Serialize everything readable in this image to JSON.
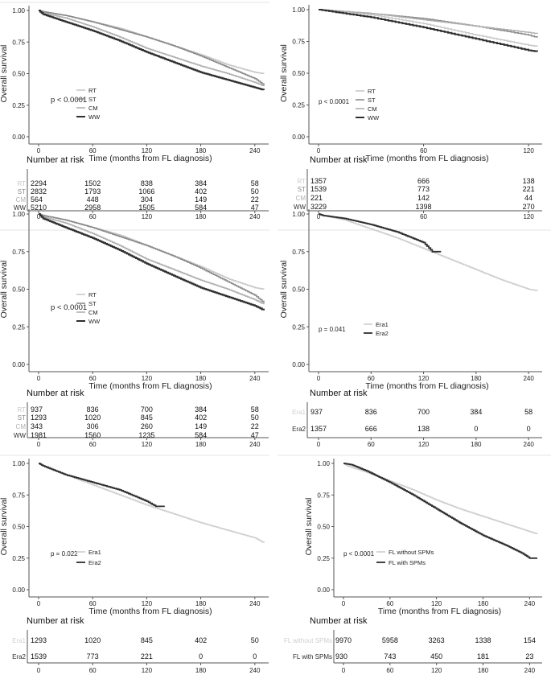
{
  "colors": {
    "RT": "#c8c8c8",
    "ST": "#8a8a8a",
    "CM": "#b0b0b0",
    "WW": "#2e2e2e",
    "Era1": "#cfcfcf",
    "Era2": "#2e2e2e",
    "FL without SPMs": "#cfcfcf",
    "FL with SPMs": "#2e2e2e",
    "axis": "#555555",
    "text": "#222222"
  },
  "chart_data": [
    {
      "id": "panel-1",
      "type": "line",
      "ylabel": "Overall survival",
      "xlabel": "Time (months from FL diagnosis)",
      "xlim": [
        0,
        250
      ],
      "ylim": [
        0,
        1
      ],
      "xticks": [
        0,
        60,
        120,
        180,
        240
      ],
      "yticks": [
        0.0,
        0.25,
        0.5,
        0.75,
        1.0
      ],
      "ytick_labels": [
        "0.00",
        "0.25",
        "0.50",
        "0.75",
        "1.00"
      ],
      "pvalue": "p < 0.0001",
      "legend": [
        "RT",
        "ST",
        "CM",
        "WW"
      ],
      "series": [
        {
          "name": "RT",
          "x": [
            0,
            5,
            30,
            60,
            90,
            120,
            150,
            180,
            210,
            240,
            250
          ],
          "y": [
            1.0,
            0.99,
            0.96,
            0.91,
            0.86,
            0.79,
            0.72,
            0.65,
            0.57,
            0.51,
            0.5
          ]
        },
        {
          "name": "ST",
          "x": [
            0,
            5,
            30,
            60,
            90,
            120,
            150,
            180,
            210,
            240,
            250
          ],
          "y": [
            1.0,
            0.99,
            0.96,
            0.91,
            0.85,
            0.79,
            0.72,
            0.64,
            0.55,
            0.46,
            0.41
          ]
        },
        {
          "name": "CM",
          "x": [
            0,
            5,
            30,
            60,
            90,
            120,
            150,
            180,
            210,
            240,
            250
          ],
          "y": [
            1.0,
            0.98,
            0.94,
            0.87,
            0.79,
            0.7,
            0.63,
            0.56,
            0.5,
            0.43,
            0.4
          ]
        },
        {
          "name": "WW",
          "x": [
            0,
            5,
            30,
            60,
            90,
            120,
            150,
            180,
            210,
            240,
            250
          ],
          "y": [
            1.0,
            0.97,
            0.91,
            0.84,
            0.76,
            0.67,
            0.59,
            0.51,
            0.45,
            0.39,
            0.37
          ]
        }
      ],
      "risk_title": "Number at risk",
      "risk_table": {
        "rows": [
          "RT",
          "ST",
          "CM",
          "WW"
        ],
        "values": [
          [
            2294,
            1502,
            838,
            384,
            58
          ],
          [
            2832,
            1793,
            1066,
            402,
            50
          ],
          [
            564,
            448,
            304,
            149,
            22
          ],
          [
            5210,
            2958,
            1505,
            584,
            47
          ]
        ]
      }
    },
    {
      "id": "panel-2",
      "type": "line",
      "ylabel": "Overall survival",
      "xlabel": "Time (months from FL diagnosis)",
      "xlim": [
        0,
        125
      ],
      "ylim": [
        0,
        1
      ],
      "xticks": [
        0,
        60,
        120
      ],
      "yticks": [
        0.0,
        0.25,
        0.5,
        0.75,
        1.0
      ],
      "ytick_labels": [
        "0.00",
        "0.25",
        "0.50",
        "0.75",
        "1.00"
      ],
      "pvalue": "p < 0.0001",
      "legend": [
        "RT",
        "ST",
        "CM",
        "WW"
      ],
      "series": [
        {
          "name": "RT",
          "x": [
            0,
            10,
            30,
            60,
            90,
            120,
            125
          ],
          "y": [
            1.0,
            0.99,
            0.96,
            0.89,
            0.8,
            0.72,
            0.71
          ]
        },
        {
          "name": "ST",
          "x": [
            0,
            10,
            30,
            60,
            90,
            120,
            125
          ],
          "y": [
            1.0,
            0.99,
            0.97,
            0.93,
            0.87,
            0.8,
            0.78
          ]
        },
        {
          "name": "CM",
          "x": [
            0,
            10,
            30,
            60,
            90,
            120,
            125
          ],
          "y": [
            1.0,
            0.99,
            0.97,
            0.92,
            0.87,
            0.82,
            0.81
          ]
        },
        {
          "name": "WW",
          "x": [
            0,
            10,
            30,
            60,
            90,
            120,
            125
          ],
          "y": [
            1.0,
            0.98,
            0.94,
            0.86,
            0.77,
            0.68,
            0.67
          ]
        }
      ],
      "risk_title": "Number at risk",
      "risk_table": {
        "rows": [
          "RT",
          "ST",
          "CM",
          "WW"
        ],
        "values": [
          [
            1357,
            666,
            138
          ],
          [
            1539,
            773,
            221
          ],
          [
            221,
            142,
            44
          ],
          [
            3229,
            1398,
            270
          ]
        ]
      }
    },
    {
      "id": "panel-3",
      "type": "line",
      "ylabel": "Overall survival",
      "xlabel": "Time (months from FL diagnosis)",
      "xlim": [
        0,
        250
      ],
      "ylim": [
        0,
        1
      ],
      "xticks": [
        0,
        60,
        120,
        180,
        240
      ],
      "yticks": [
        0.0,
        0.25,
        0.5,
        0.75,
        1.0
      ],
      "ytick_labels": [
        "0.00",
        "0.25",
        "0.50",
        "0.75",
        "1.00"
      ],
      "pvalue": "p < 0.0001",
      "legend": [
        "RT",
        "ST",
        "CM",
        "WW"
      ],
      "series": [
        {
          "name": "RT",
          "x": [
            0,
            5,
            30,
            60,
            90,
            120,
            150,
            180,
            210,
            240,
            250
          ],
          "y": [
            1.0,
            0.99,
            0.96,
            0.91,
            0.86,
            0.79,
            0.72,
            0.65,
            0.57,
            0.51,
            0.5
          ]
        },
        {
          "name": "ST",
          "x": [
            0,
            5,
            30,
            60,
            90,
            120,
            150,
            180,
            210,
            240,
            250
          ],
          "y": [
            1.0,
            0.99,
            0.96,
            0.91,
            0.85,
            0.79,
            0.72,
            0.64,
            0.55,
            0.46,
            0.41
          ]
        },
        {
          "name": "CM",
          "x": [
            0,
            5,
            30,
            60,
            90,
            120,
            150,
            180,
            210,
            240,
            250
          ],
          "y": [
            1.0,
            0.98,
            0.94,
            0.87,
            0.79,
            0.7,
            0.63,
            0.56,
            0.5,
            0.43,
            0.4
          ]
        },
        {
          "name": "WW",
          "x": [
            0,
            5,
            30,
            60,
            90,
            120,
            150,
            180,
            210,
            240,
            250
          ],
          "y": [
            1.0,
            0.97,
            0.91,
            0.84,
            0.76,
            0.67,
            0.59,
            0.51,
            0.45,
            0.39,
            0.36
          ]
        }
      ],
      "risk_title": "Number at risk",
      "risk_table": {
        "rows": [
          "RT",
          "ST",
          "CM",
          "WW"
        ],
        "values": [
          [
            937,
            836,
            700,
            384,
            58
          ],
          [
            1293,
            1020,
            845,
            402,
            50
          ],
          [
            343,
            306,
            260,
            149,
            22
          ],
          [
            1981,
            1560,
            1235,
            584,
            47
          ]
        ]
      }
    },
    {
      "id": "panel-4",
      "type": "line",
      "ylabel": "Overall survival",
      "xlabel": "Time (months from FL diagnosis)",
      "xlim": [
        0,
        250
      ],
      "ylim": [
        0,
        1
      ],
      "xticks": [
        0,
        60,
        120,
        180,
        240
      ],
      "yticks": [
        0.0,
        0.25,
        0.5,
        0.75,
        1.0
      ],
      "ytick_labels": [
        "0.00",
        "0.25",
        "0.50",
        "0.75",
        "1.00"
      ],
      "pvalue": "p = 0.041",
      "legend": [
        "Era1",
        "Era2"
      ],
      "series": [
        {
          "name": "Era1",
          "x": [
            0,
            5,
            30,
            60,
            90,
            120,
            150,
            180,
            210,
            240,
            250
          ],
          "y": [
            1.0,
            0.99,
            0.96,
            0.9,
            0.84,
            0.77,
            0.7,
            0.63,
            0.56,
            0.5,
            0.49
          ]
        },
        {
          "name": "Era2",
          "x": [
            0,
            5,
            30,
            60,
            90,
            120,
            130,
            140
          ],
          "y": [
            1.0,
            0.99,
            0.97,
            0.93,
            0.88,
            0.81,
            0.75,
            0.75
          ]
        }
      ],
      "risk_title": "Number at risk",
      "risk_table": {
        "rows": [
          "Era1",
          "Era2"
        ],
        "values": [
          [
            937,
            836,
            700,
            384,
            58
          ],
          [
            1357,
            666,
            138,
            0,
            0
          ]
        ]
      }
    },
    {
      "id": "panel-5",
      "type": "line",
      "ylabel": "Overall survival",
      "xlabel": "Time (months from FL diagnosis)",
      "xlim": [
        0,
        250
      ],
      "ylim": [
        0,
        1
      ],
      "xticks": [
        0,
        60,
        120,
        180,
        240
      ],
      "yticks": [
        0.0,
        0.25,
        0.5,
        0.75,
        1.0
      ],
      "ytick_labels": [
        "0.00",
        "0.25",
        "0.50",
        "0.75",
        "1.00"
      ],
      "pvalue": "p = 0.022",
      "legend": [
        "Era1",
        "Era2"
      ],
      "series": [
        {
          "name": "Era1",
          "x": [
            0,
            5,
            30,
            60,
            90,
            120,
            150,
            180,
            210,
            240,
            250
          ],
          "y": [
            1.0,
            0.98,
            0.91,
            0.83,
            0.75,
            0.67,
            0.6,
            0.53,
            0.47,
            0.41,
            0.37
          ]
        },
        {
          "name": "Era2",
          "x": [
            0,
            5,
            30,
            60,
            90,
            120,
            130,
            140
          ],
          "y": [
            1.0,
            0.98,
            0.91,
            0.85,
            0.79,
            0.7,
            0.66,
            0.66
          ]
        }
      ],
      "risk_title": "Number at risk",
      "risk_table": {
        "rows": [
          "Era1",
          "Era2"
        ],
        "values": [
          [
            1293,
            1020,
            845,
            402,
            50
          ],
          [
            1539,
            773,
            221,
            0,
            0
          ]
        ]
      }
    },
    {
      "id": "panel-6",
      "type": "line",
      "ylabel": "Overall survival",
      "xlabel": "Time (months from FL diagnosis)",
      "xlim": [
        0,
        250
      ],
      "ylim": [
        0,
        1
      ],
      "xticks": [
        0,
        60,
        120,
        180,
        240
      ],
      "yticks": [
        0.0,
        0.25,
        0.5,
        0.75,
        1.0
      ],
      "ytick_labels": [
        "0.00",
        "0.25",
        "0.50",
        "0.75",
        "1.00"
      ],
      "pvalue": "p < 0.0001",
      "legend": [
        "FL without SPMs",
        "FL with SPMs"
      ],
      "series": [
        {
          "name": "FL without SPMs",
          "x": [
            0,
            5,
            30,
            60,
            90,
            120,
            150,
            180,
            210,
            240,
            250
          ],
          "y": [
            1.0,
            0.98,
            0.93,
            0.86,
            0.79,
            0.71,
            0.64,
            0.58,
            0.52,
            0.46,
            0.44
          ]
        },
        {
          "name": "FL with SPMs",
          "x": [
            0,
            10,
            30,
            60,
            90,
            120,
            150,
            180,
            210,
            230,
            240,
            250
          ],
          "y": [
            1.0,
            0.99,
            0.94,
            0.85,
            0.75,
            0.64,
            0.53,
            0.43,
            0.35,
            0.29,
            0.25,
            0.25
          ]
        }
      ],
      "risk_title": "Number at risk",
      "risk_table": {
        "rows": [
          "FL without SPMs",
          "FL with SPMs"
        ],
        "values": [
          [
            9970,
            5958,
            3263,
            1338,
            154
          ],
          [
            930,
            743,
            450,
            181,
            23
          ]
        ]
      }
    }
  ]
}
